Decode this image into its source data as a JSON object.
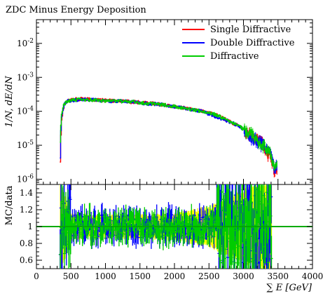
{
  "chart_data": [
    {
      "type": "line",
      "title": "ZDC Minus Energy Deposition",
      "ylabel": "1/N, dE/dN",
      "xlim": [
        0,
        4000
      ],
      "ylim": [
        7e-07,
        0.05
      ],
      "yscale": "log",
      "y_ticks": [
        "10^-6",
        "10^-5",
        "10^-4",
        "10^-3",
        "10^-2"
      ],
      "legend_position": "top-right",
      "grid": false,
      "series": [
        {
          "name": "Single Diffractive",
          "color": "#ff0000",
          "x": [
            340,
            360,
            400,
            450,
            500,
            600,
            700,
            800,
            900,
            1000,
            1200,
            1400,
            1600,
            1800,
            2000,
            2200,
            2400,
            2600,
            2800,
            2900,
            3000,
            3100,
            3200,
            3300,
            3400,
            3450
          ],
          "y": [
            1.5e-06,
            5e-05,
            0.00015,
            0.0002,
            0.00022,
            0.00023,
            0.00023,
            0.00022,
            0.00022,
            0.00021,
            0.0002,
            0.00019,
            0.00018,
            0.00016,
            0.00014,
            0.00012,
            0.0001,
            8e-05,
            5e-05,
            4e-05,
            3e-05,
            2e-05,
            1.5e-05,
            1e-05,
            4e-06,
            2e-06
          ]
        },
        {
          "name": "Double Diffractive",
          "color": "#0000ff",
          "x": [
            340,
            360,
            400,
            450,
            500,
            600,
            700,
            800,
            900,
            1000,
            1200,
            1400,
            1600,
            1800,
            2000,
            2200,
            2400,
            2600,
            2800,
            2900,
            3000,
            3100,
            3200,
            3300,
            3400,
            3450
          ],
          "y": [
            2e-06,
            6e-05,
            0.00016,
            0.0002,
            0.00021,
            0.00022,
            0.00022,
            0.00022,
            0.00021,
            0.0002,
            0.0002,
            0.00019,
            0.00017,
            0.00016,
            0.00014,
            0.00012,
            0.0001,
            7e-05,
            5e-05,
            4e-05,
            3e-05,
            2e-05,
            1.4e-05,
            1e-05,
            5e-06,
            2.5e-06
          ]
        },
        {
          "name": "Diffractive",
          "color": "#00cc00",
          "x": [
            340,
            360,
            400,
            450,
            500,
            600,
            700,
            800,
            900,
            1000,
            1200,
            1400,
            1600,
            1800,
            2000,
            2200,
            2400,
            2600,
            2800,
            2900,
            3000,
            3100,
            3200,
            3300,
            3400,
            3450
          ],
          "y": [
            8e-06,
            7e-05,
            0.00016,
            0.0002,
            0.00021,
            0.00022,
            0.00022,
            0.00022,
            0.00021,
            0.0002,
            0.0002,
            0.00019,
            0.00017,
            0.00016,
            0.00014,
            0.00012,
            0.0001,
            8e-05,
            5e-05,
            4e-05,
            3e-05,
            2.5e-05,
            1.5e-05,
            1e-05,
            5e-06,
            3e-06
          ]
        }
      ]
    },
    {
      "type": "line",
      "ylabel": "MC/data",
      "xlabel": "∑ E [GeV]",
      "xlim": [
        0,
        4000
      ],
      "ylim": [
        0.5,
        1.5
      ],
      "x_ticks": [
        0,
        500,
        1000,
        1500,
        2000,
        2500,
        3000,
        3500,
        4000
      ],
      "y_ticks": [
        0.6,
        0.8,
        1,
        1.2,
        1.4
      ],
      "reference_line": 1,
      "reference_color": "#00aa00",
      "uncertainty_band_color": "#ffff00",
      "uncertainty_band": {
        "x": [
          340,
          500,
          1000,
          1500,
          2000,
          2500,
          3000,
          3400
        ],
        "lower": [
          0.5,
          0.88,
          0.9,
          0.9,
          0.88,
          0.8,
          0.6,
          0.5
        ],
        "upper": [
          1.5,
          1.12,
          1.1,
          1.1,
          1.12,
          1.2,
          1.4,
          1.5
        ]
      },
      "series": [
        {
          "color": "#0000ff"
        },
        {
          "color": "#00cc00"
        }
      ]
    }
  ]
}
